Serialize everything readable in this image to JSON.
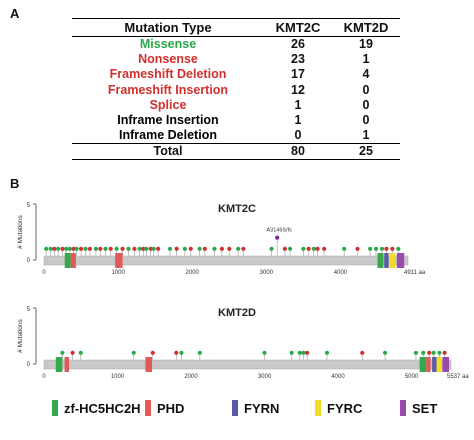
{
  "panel_a_label": "A",
  "panel_b_label": "B",
  "table": {
    "headers": [
      "Mutation Type",
      "KMT2C",
      "KMT2D"
    ],
    "rows": [
      {
        "type": "Missense",
        "kmt2c": "26",
        "kmt2d": "19",
        "color": "#2aa84a"
      },
      {
        "type": "Nonsense",
        "kmt2c": "23",
        "kmt2d": "1",
        "color": "#d32f2f"
      },
      {
        "type": "Frameshift Deletion",
        "kmt2c": "17",
        "kmt2d": "4",
        "color": "#d32f2f"
      },
      {
        "type": "Frameshift Insertion",
        "kmt2c": "12",
        "kmt2d": "0",
        "color": "#d32f2f"
      },
      {
        "type": "Splice",
        "kmt2c": "1",
        "kmt2d": "0",
        "color": "#d32f2f"
      },
      {
        "type": "Inframe Insertion",
        "kmt2c": "1",
        "kmt2d": "0",
        "color": "#000000"
      },
      {
        "type": "Inframe Deletion",
        "kmt2c": "0",
        "kmt2d": "1",
        "color": "#000000"
      }
    ],
    "total": {
      "type": "Total",
      "kmt2c": "80",
      "kmt2d": "25"
    }
  },
  "chart_data": [
    {
      "type": "scatter",
      "title": "KMT2C",
      "ylabel": "# Mutations",
      "ylim": [
        0,
        5
      ],
      "yticks": [
        "0",
        "5"
      ],
      "xlim": [
        0,
        4911
      ],
      "xticks": [
        0,
        1000,
        2000,
        3000,
        4000
      ],
      "length_label": "4911 aa",
      "annotation": {
        "text": "A3146S/fs",
        "x": 3146,
        "count": 2,
        "color": "#7b2d8e"
      },
      "domains": [
        {
          "name": "zf-HC5HC2H",
          "start": 280,
          "end": 360
        },
        {
          "name": "PHD",
          "start": 360,
          "end": 430
        },
        {
          "name": "PHD",
          "start": 960,
          "end": 1060
        },
        {
          "name": "zf-HC5HC2H",
          "start": 4500,
          "end": 4580
        },
        {
          "name": "FYRN",
          "start": 4590,
          "end": 4650
        },
        {
          "name": "FYRC",
          "start": 4660,
          "end": 4740
        },
        {
          "name": "SET",
          "start": 4760,
          "end": 4860
        }
      ],
      "mutations": [
        {
          "x": 30,
          "type": "Missense"
        },
        {
          "x": 90,
          "type": "Missense"
        },
        {
          "x": 140,
          "type": "Nonsense"
        },
        {
          "x": 190,
          "type": "Missense"
        },
        {
          "x": 250,
          "type": "Nonsense"
        },
        {
          "x": 300,
          "type": "Missense"
        },
        {
          "x": 350,
          "type": "Missense"
        },
        {
          "x": 400,
          "type": "Nonsense"
        },
        {
          "x": 440,
          "type": "Missense"
        },
        {
          "x": 500,
          "type": "Nonsense"
        },
        {
          "x": 560,
          "type": "Missense"
        },
        {
          "x": 620,
          "type": "Nonsense"
        },
        {
          "x": 700,
          "type": "Missense"
        },
        {
          "x": 760,
          "type": "Nonsense"
        },
        {
          "x": 830,
          "type": "Missense"
        },
        {
          "x": 900,
          "type": "Nonsense"
        },
        {
          "x": 980,
          "type": "Missense"
        },
        {
          "x": 1060,
          "type": "Nonsense"
        },
        {
          "x": 1140,
          "type": "Missense"
        },
        {
          "x": 1220,
          "type": "Nonsense"
        },
        {
          "x": 1290,
          "type": "Missense"
        },
        {
          "x": 1340,
          "type": "Nonsense"
        },
        {
          "x": 1380,
          "type": "Missense"
        },
        {
          "x": 1440,
          "type": "Nonsense"
        },
        {
          "x": 1480,
          "type": "Missense"
        },
        {
          "x": 1540,
          "type": "Nonsense"
        },
        {
          "x": 1700,
          "type": "Missense"
        },
        {
          "x": 1790,
          "type": "Nonsense"
        },
        {
          "x": 1900,
          "type": "Missense"
        },
        {
          "x": 1980,
          "type": "Nonsense"
        },
        {
          "x": 2100,
          "type": "Missense"
        },
        {
          "x": 2170,
          "type": "Nonsense"
        },
        {
          "x": 2300,
          "type": "Missense"
        },
        {
          "x": 2400,
          "type": "Nonsense"
        },
        {
          "x": 2500,
          "type": "Nonsense"
        },
        {
          "x": 2620,
          "type": "Missense"
        },
        {
          "x": 2690,
          "type": "Nonsense"
        },
        {
          "x": 3070,
          "type": "Missense"
        },
        {
          "x": 3146,
          "type": "Missense",
          "count": 2
        },
        {
          "x": 3250,
          "type": "Nonsense"
        },
        {
          "x": 3320,
          "type": "Missense"
        },
        {
          "x": 3500,
          "type": "Missense"
        },
        {
          "x": 3570,
          "type": "Nonsense"
        },
        {
          "x": 3640,
          "type": "Missense"
        },
        {
          "x": 3690,
          "type": "Nonsense"
        },
        {
          "x": 3780,
          "type": "Nonsense"
        },
        {
          "x": 4050,
          "type": "Missense"
        },
        {
          "x": 4230,
          "type": "Nonsense"
        },
        {
          "x": 4400,
          "type": "Missense"
        },
        {
          "x": 4480,
          "type": "Missense"
        },
        {
          "x": 4560,
          "type": "Missense"
        },
        {
          "x": 4620,
          "type": "Nonsense"
        },
        {
          "x": 4700,
          "type": "Nonsense"
        },
        {
          "x": 4780,
          "type": "Missense"
        }
      ]
    },
    {
      "type": "scatter",
      "title": "KMT2D",
      "ylabel": "# Mutations",
      "ylim": [
        0,
        5
      ],
      "yticks": [
        "0",
        "5"
      ],
      "xlim": [
        0,
        5537
      ],
      "xticks": [
        0,
        1000,
        2000,
        3000,
        4000,
        5000
      ],
      "length_label": "5537 aa",
      "domains": [
        {
          "name": "zf-HC5HC2H",
          "start": 160,
          "end": 250
        },
        {
          "name": "PHD",
          "start": 280,
          "end": 340
        },
        {
          "name": "PHD",
          "start": 1380,
          "end": 1470
        },
        {
          "name": "zf-HC5HC2H",
          "start": 5110,
          "end": 5200
        },
        {
          "name": "PHD",
          "start": 5200,
          "end": 5260
        },
        {
          "name": "FYRN",
          "start": 5280,
          "end": 5340
        },
        {
          "name": "FYRC",
          "start": 5340,
          "end": 5410
        },
        {
          "name": "SET",
          "start": 5420,
          "end": 5510
        }
      ],
      "mutations": [
        {
          "x": 250,
          "type": "Missense"
        },
        {
          "x": 390,
          "type": "Nonsense"
        },
        {
          "x": 500,
          "type": "Missense"
        },
        {
          "x": 1220,
          "type": "Missense"
        },
        {
          "x": 1480,
          "type": "Nonsense"
        },
        {
          "x": 1800,
          "type": "Nonsense"
        },
        {
          "x": 1870,
          "type": "Missense"
        },
        {
          "x": 2120,
          "type": "Missense"
        },
        {
          "x": 3000,
          "type": "Missense"
        },
        {
          "x": 3370,
          "type": "Missense"
        },
        {
          "x": 3480,
          "type": "Missense"
        },
        {
          "x": 3530,
          "type": "Missense"
        },
        {
          "x": 3580,
          "type": "Nonsense"
        },
        {
          "x": 3850,
          "type": "Missense"
        },
        {
          "x": 4330,
          "type": "Nonsense"
        },
        {
          "x": 4640,
          "type": "Missense"
        },
        {
          "x": 5060,
          "type": "Missense"
        },
        {
          "x": 5160,
          "type": "Missense"
        },
        {
          "x": 5240,
          "type": "Nonsense"
        },
        {
          "x": 5300,
          "type": "Missense"
        },
        {
          "x": 5380,
          "type": "Missense"
        },
        {
          "x": 5450,
          "type": "Nonsense"
        }
      ]
    }
  ],
  "legend": [
    {
      "label": "zf-HC5HC2H",
      "color": "#34a84a"
    },
    {
      "label": "PHD",
      "color": "#e05a5a"
    },
    {
      "label": "FYRN",
      "color": "#5a5aa8"
    },
    {
      "label": "FYRC",
      "color": "#f2dc2a"
    },
    {
      "label": "SET",
      "color": "#9a4aa8"
    }
  ],
  "colors": {
    "missense": "#2aa84a",
    "truncating": "#d32f2f",
    "backbone": "#c8c8c8",
    "stem": "#a8a8a8"
  }
}
